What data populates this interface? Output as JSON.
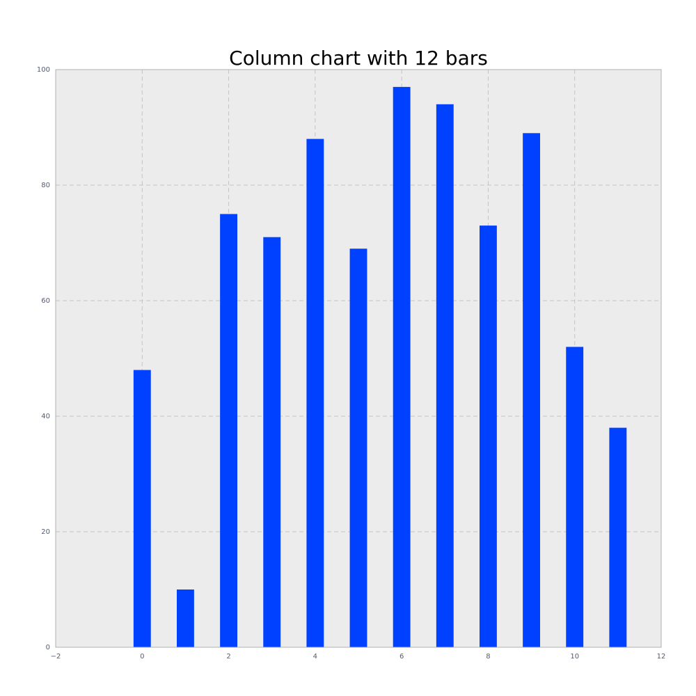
{
  "chart_data": {
    "type": "bar",
    "title": "Column chart with 12 bars",
    "xlabel": "",
    "ylabel": "",
    "x": [
      0,
      1,
      2,
      3,
      4,
      5,
      6,
      7,
      8,
      9,
      10,
      11
    ],
    "values": [
      48,
      10,
      75,
      71,
      88,
      69,
      97,
      94,
      73,
      89,
      52,
      38
    ],
    "bar_width": 0.4,
    "xlim": [
      -2,
      12
    ],
    "ylim": [
      0,
      100
    ],
    "xticks": [
      -2,
      0,
      2,
      4,
      6,
      8,
      10,
      12
    ],
    "yticks": [
      0,
      20,
      40,
      60,
      80,
      100
    ],
    "xtick_labels": [
      "−2",
      "0",
      "2",
      "4",
      "6",
      "8",
      "10",
      "12"
    ],
    "ytick_labels": [
      "0",
      "20",
      "40",
      "60",
      "80",
      "100"
    ],
    "grid": true,
    "grid_style": "dashed",
    "legend": false,
    "colors": {
      "bar": "#0040ff",
      "plot_background": "#ececec",
      "grid": "#c4c4c4",
      "axes_border": "#b0b0b0",
      "tick_label": "#555b6e",
      "title": "#000000"
    }
  }
}
